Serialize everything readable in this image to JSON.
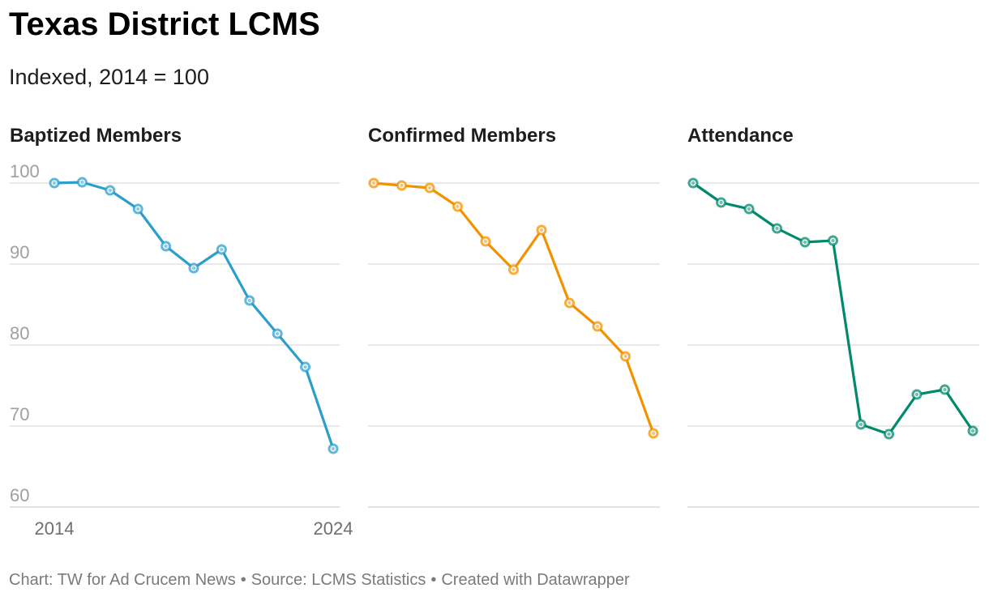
{
  "title": "Texas District LCMS",
  "subtitle": "Indexed, 2014 = 100",
  "footer": {
    "chart_credit": "Chart: TW for Ad Crucem News",
    "source": "Source: LCMS Statistics",
    "created": "Created with Datawrapper",
    "separator": "•"
  },
  "colors": {
    "baptized": "#2b9fcc",
    "confirmed": "#f39200",
    "attendance": "#00896d",
    "grid": "#dcdcdc",
    "axis_text": "#a0a0a0",
    "x_text": "#6e6e6e"
  },
  "chart_data": {
    "type": "line",
    "layout": "small-multiples",
    "x": [
      2014,
      2015,
      2016,
      2017,
      2018,
      2019,
      2020,
      2021,
      2022,
      2023,
      2024
    ],
    "x_tick_labels": [
      "2014",
      "2024"
    ],
    "ylim": [
      60,
      100
    ],
    "y_ticks": [
      100,
      90,
      80,
      70,
      60
    ],
    "grid": true,
    "panels": [
      {
        "name": "Baptized Members",
        "color_key": "baptized",
        "values": [
          100.0,
          100.1,
          99.1,
          96.8,
          92.2,
          89.5,
          91.8,
          85.5,
          81.4,
          77.3,
          67.2
        ]
      },
      {
        "name": "Confirmed Members",
        "color_key": "confirmed",
        "values": [
          100.0,
          99.7,
          99.4,
          97.1,
          92.8,
          89.3,
          94.2,
          85.2,
          82.3,
          78.6,
          69.1
        ]
      },
      {
        "name": "Attendance",
        "color_key": "attendance",
        "values": [
          100.0,
          97.6,
          96.8,
          94.4,
          92.7,
          92.9,
          70.2,
          69.0,
          73.9,
          74.5,
          69.4
        ]
      }
    ]
  }
}
